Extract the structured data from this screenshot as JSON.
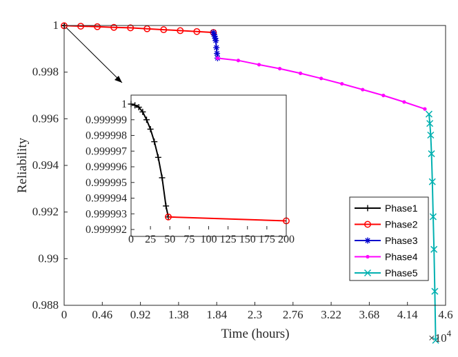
{
  "chart_data": [
    {
      "type": "line",
      "xlabel": "Time (hours)",
      "ylabel": "Reliability",
      "x_exponent_label": "×10",
      "x_exponent_power": "4",
      "xlim": [
        0,
        4.6
      ],
      "ylim": [
        0.988,
        1
      ],
      "xticks": [
        "0",
        "0.46",
        "0.92",
        "1.38",
        "1.84",
        "2.3",
        "2.76",
        "3.22",
        "3.68",
        "4.14",
        "4.6"
      ],
      "yticks": [
        "0.988",
        "0.99",
        "0.992",
        "0.994",
        "0.996",
        "0.998",
        "1"
      ],
      "legend_position": "bottom-right",
      "series": [
        {
          "name": "Phase1",
          "color": "#000000",
          "marker": "plus",
          "x": [
            0,
            0.002,
            0.004
          ],
          "y": [
            1.0,
            0.999996,
            0.999993
          ]
        },
        {
          "name": "Phase2",
          "color": "#ff0000",
          "marker": "circle",
          "x": [
            0,
            0.2,
            0.4,
            0.6,
            0.8,
            1.0,
            1.2,
            1.4,
            1.6,
            1.8
          ],
          "y": [
            0.99999,
            0.99997,
            0.99995,
            0.99992,
            0.9999,
            0.99986,
            0.99982,
            0.99978,
            0.99974,
            0.9997
          ]
        },
        {
          "name": "Phase3",
          "color": "#0000cc",
          "marker": "asterisk",
          "x": [
            1.8,
            1.808,
            1.815,
            1.822,
            1.829,
            1.836,
            1.843,
            1.85
          ],
          "y": [
            0.9997,
            0.99962,
            0.99954,
            0.99945,
            0.99935,
            0.99905,
            0.9988,
            0.9986
          ]
        },
        {
          "name": "Phase4",
          "color": "#ff00ff",
          "marker": "dot",
          "x": [
            1.85,
            2.1,
            2.35,
            2.6,
            2.85,
            3.1,
            3.35,
            3.6,
            3.85,
            4.1,
            4.35
          ],
          "y": [
            0.9986,
            0.9985,
            0.99832,
            0.99815,
            0.99795,
            0.99773,
            0.9975,
            0.99725,
            0.997,
            0.99672,
            0.99642
          ]
        },
        {
          "name": "Phase5",
          "color": "#00b0b0",
          "marker": "x",
          "x": [
            4.4,
            4.41,
            4.42,
            4.43,
            4.44,
            4.45,
            4.46,
            4.47,
            4.48
          ],
          "y": [
            0.9962,
            0.9958,
            0.9953,
            0.9945,
            0.9933,
            0.9918,
            0.9904,
            0.9886,
            0.9865
          ]
        }
      ]
    },
    {
      "type": "line",
      "role": "inset",
      "xlim": [
        0,
        200
      ],
      "ylim": [
        0.999992,
        1
      ],
      "xticks": [
        "0",
        "25",
        "50",
        "75",
        "100",
        "125",
        "150",
        "175",
        "200"
      ],
      "yticks": [
        "0.999992",
        "0.999993",
        "0.999994",
        "0.999995",
        "0.999996",
        "0.999997",
        "0.999998",
        "0.999999",
        "1"
      ],
      "series": [
        {
          "name": "Phase1",
          "color": "#000000",
          "marker": "plus",
          "x": [
            0,
            5,
            10,
            15,
            20,
            25,
            30,
            35,
            40,
            45,
            48
          ],
          "y": [
            1.0,
            0.99999992,
            0.9999998,
            0.9999995,
            0.999999,
            0.9999984,
            0.9999976,
            0.9999966,
            0.9999953,
            0.9999935,
            0.9999928
          ]
        },
        {
          "name": "Phase2",
          "color": "#ff0000",
          "marker": "circle",
          "x": [
            48,
            200
          ],
          "y": [
            0.9999928,
            0.99999255
          ]
        }
      ]
    }
  ]
}
